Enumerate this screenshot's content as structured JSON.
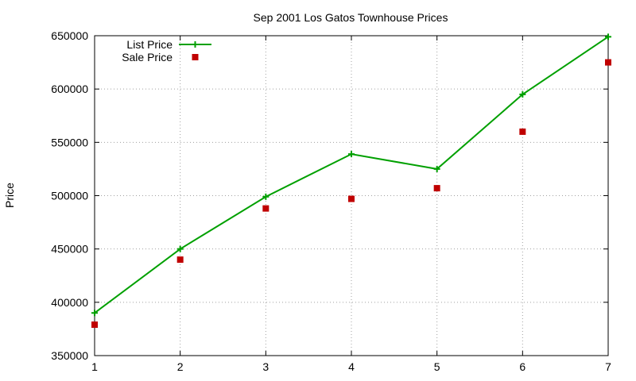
{
  "chart_data": {
    "type": "line",
    "title": "Sep 2001 Los Gatos Townhouse Prices",
    "xlabel": "",
    "ylabel": "Price",
    "x": [
      1,
      2,
      3,
      4,
      5,
      6,
      7
    ],
    "xlim": [
      1,
      7
    ],
    "ylim": [
      350000,
      650000
    ],
    "xticks": [
      1,
      2,
      3,
      4,
      5,
      6,
      7
    ],
    "yticks": [
      350000,
      400000,
      450000,
      500000,
      550000,
      600000,
      650000
    ],
    "grid": true,
    "legend_position": "top-left",
    "series": [
      {
        "name": "List Price",
        "style": "linespoints",
        "marker": "plus",
        "color": "#00a000",
        "values": [
          390000,
          450000,
          499000,
          539000,
          525000,
          595000,
          649000
        ]
      },
      {
        "name": "Sale Price",
        "style": "points",
        "marker": "square",
        "color": "#c00000",
        "values": [
          379000,
          440000,
          488000,
          497000,
          507000,
          560000,
          625000
        ]
      }
    ]
  }
}
